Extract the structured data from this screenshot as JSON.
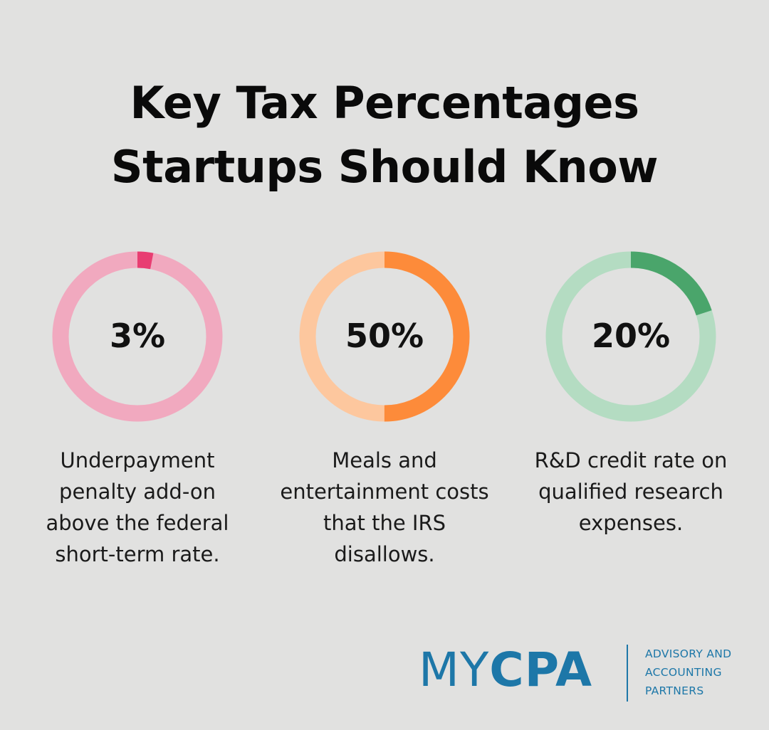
{
  "title_lines": [
    "Key Tax Percentages",
    "Startups Should Know"
  ],
  "chart_data": {
    "type": "pie",
    "variant": "donut",
    "items": [
      {
        "label": "3%",
        "value": 3,
        "description": [
          "Underpayment",
          "penalty add-on",
          "above the federal",
          "short-term rate."
        ],
        "color": "#e83e72",
        "track_color": "#f1a9bf"
      },
      {
        "label": "50%",
        "value": 50,
        "description": [
          "Meals and",
          "entertainment costs",
          "that the IRS",
          "disallows."
        ],
        "color": "#fd8b3a",
        "track_color": "#fdc79e"
      },
      {
        "label": "20%",
        "value": 20,
        "description": [
          "R&D credit rate on",
          "qualified research",
          "expenses."
        ],
        "color": "#4aa56b",
        "track_color": "#b4dcc2"
      }
    ]
  },
  "brand": {
    "my": "MY",
    "cpa": "CPA",
    "tagline": [
      "ADVISORY AND",
      "ACCOUNTING",
      "PARTNERS"
    ],
    "color": "#1d77a8"
  }
}
